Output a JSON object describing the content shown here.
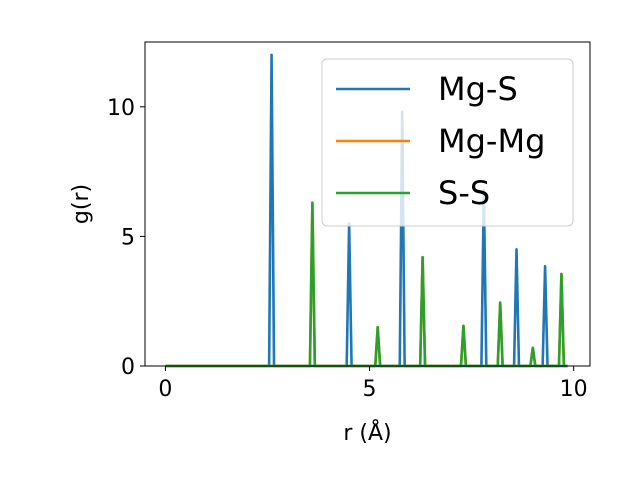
{
  "chart_data": {
    "type": "line",
    "title": "",
    "xlabel": "r (Å)",
    "ylabel": "g(r)",
    "xlim": [
      -0.5,
      10.4
    ],
    "ylim": [
      0,
      12.5
    ],
    "xticks": [
      0,
      5,
      10
    ],
    "yticks": [
      0,
      5,
      10
    ],
    "xtick_labels": [
      "0",
      "5",
      "10"
    ],
    "ytick_labels": [
      "0",
      "5",
      "10"
    ],
    "grid": false,
    "legend_position": "top-right",
    "x_range": [
      0,
      9.85
    ],
    "series": [
      {
        "name": "Mg-S",
        "color": "#1f77b4",
        "peaks": [
          [
            2.6,
            12.0
          ],
          [
            4.5,
            5.5
          ],
          [
            5.8,
            9.8
          ],
          [
            7.8,
            6.8
          ],
          [
            8.6,
            4.5
          ],
          [
            9.3,
            3.85
          ]
        ]
      },
      {
        "name": "Mg-Mg",
        "color": "#ff7f0e",
        "peaks": [
          [
            3.6,
            6.3
          ],
          [
            5.2,
            1.5
          ],
          [
            6.3,
            4.2
          ],
          [
            7.3,
            1.55
          ],
          [
            8.2,
            2.45
          ],
          [
            9.0,
            0.7
          ],
          [
            9.7,
            3.55
          ]
        ]
      },
      {
        "name": "S-S",
        "color": "#2ca02c",
        "peaks": [
          [
            3.6,
            6.3
          ],
          [
            5.2,
            1.5
          ],
          [
            6.3,
            4.2
          ],
          [
            7.3,
            1.55
          ],
          [
            8.2,
            2.45
          ],
          [
            9.0,
            0.7
          ],
          [
            9.7,
            3.55
          ]
        ]
      }
    ]
  }
}
